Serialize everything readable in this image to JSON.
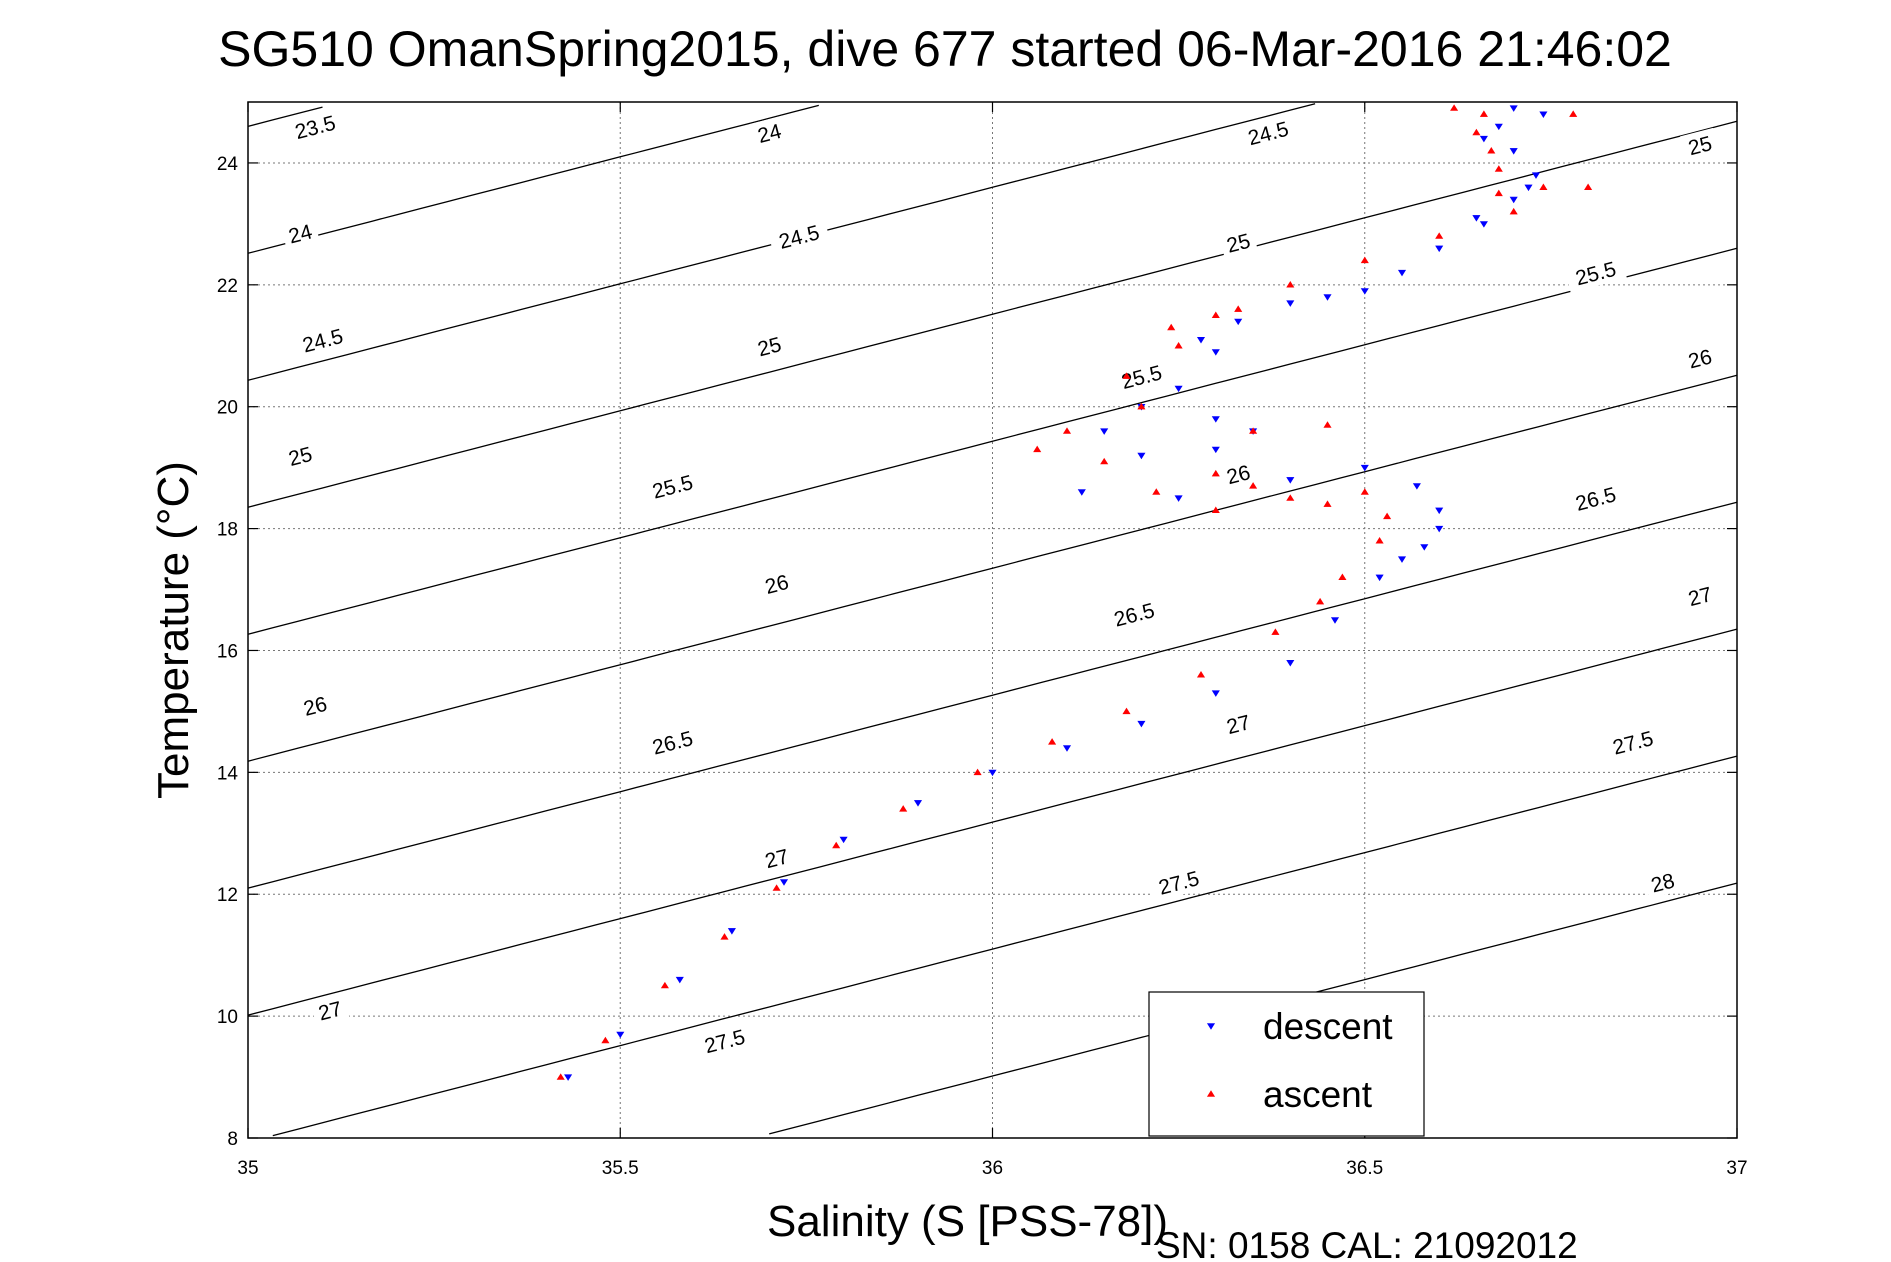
{
  "chart_data": {
    "type": "scatter",
    "title": "SG510 OmanSpring2015, dive 677 started 06-Mar-2016 21:46:02",
    "xlabel": "Salinity (S [PSS-78])",
    "ylabel": "Temperature (°C)",
    "xlim": [
      35,
      37
    ],
    "ylim": [
      8,
      25
    ],
    "x_ticks": [
      35,
      35.5,
      36,
      36.5,
      37
    ],
    "x_tick_labels": [
      "35",
      "35.5",
      "36",
      "36.5",
      "37"
    ],
    "y_ticks": [
      8,
      10,
      12,
      14,
      16,
      18,
      20,
      22,
      24
    ],
    "y_tick_labels": [
      "8",
      "10",
      "12",
      "14",
      "16",
      "18",
      "20",
      "22",
      "24"
    ],
    "grid": true,
    "legend_position": "bottom-right",
    "series": [
      {
        "name": "descent",
        "color": "#0000ff",
        "marker": "triangle-down",
        "points": [
          [
            35.43,
            9.0
          ],
          [
            35.5,
            9.7
          ],
          [
            35.58,
            10.6
          ],
          [
            35.65,
            11.4
          ],
          [
            35.72,
            12.2
          ],
          [
            35.8,
            12.9
          ],
          [
            35.9,
            13.5
          ],
          [
            36.0,
            14.0
          ],
          [
            36.1,
            14.4
          ],
          [
            36.2,
            14.8
          ],
          [
            36.3,
            15.3
          ],
          [
            36.4,
            15.8
          ],
          [
            36.46,
            16.5
          ],
          [
            36.52,
            17.2
          ],
          [
            36.58,
            17.7
          ],
          [
            36.6,
            18.3
          ],
          [
            36.57,
            18.7
          ],
          [
            36.5,
            19.0
          ],
          [
            36.3,
            19.8
          ],
          [
            36.2,
            20.0
          ],
          [
            36.15,
            19.6
          ],
          [
            36.12,
            18.6
          ],
          [
            36.2,
            19.2
          ],
          [
            36.25,
            20.3
          ],
          [
            36.3,
            20.9
          ],
          [
            36.33,
            21.4
          ],
          [
            36.4,
            21.7
          ],
          [
            36.5,
            21.9
          ],
          [
            36.55,
            22.2
          ],
          [
            36.6,
            22.6
          ],
          [
            36.66,
            23.0
          ],
          [
            36.7,
            23.4
          ],
          [
            36.73,
            23.8
          ],
          [
            36.7,
            24.2
          ],
          [
            36.68,
            24.6
          ],
          [
            36.7,
            24.9
          ],
          [
            36.74,
            24.8
          ],
          [
            36.25,
            18.5
          ],
          [
            36.4,
            18.8
          ],
          [
            36.3,
            19.3
          ],
          [
            36.35,
            19.6
          ],
          [
            36.28,
            21.1
          ],
          [
            36.45,
            21.8
          ],
          [
            36.65,
            23.1
          ],
          [
            36.72,
            23.6
          ],
          [
            36.66,
            24.4
          ],
          [
            36.6,
            18.0
          ],
          [
            36.55,
            17.5
          ]
        ]
      },
      {
        "name": "ascent",
        "color": "#ff0000",
        "marker": "triangle-up",
        "points": [
          [
            35.42,
            9.0
          ],
          [
            35.48,
            9.6
          ],
          [
            35.56,
            10.5
          ],
          [
            35.64,
            11.3
          ],
          [
            35.71,
            12.1
          ],
          [
            35.79,
            12.8
          ],
          [
            35.88,
            13.4
          ],
          [
            35.98,
            14.0
          ],
          [
            36.08,
            14.5
          ],
          [
            36.18,
            15.0
          ],
          [
            36.28,
            15.6
          ],
          [
            36.38,
            16.3
          ],
          [
            36.44,
            16.8
          ],
          [
            36.47,
            17.2
          ],
          [
            36.52,
            17.8
          ],
          [
            36.53,
            18.2
          ],
          [
            36.5,
            18.6
          ],
          [
            36.45,
            18.4
          ],
          [
            36.35,
            18.7
          ],
          [
            36.3,
            18.3
          ],
          [
            36.22,
            18.6
          ],
          [
            36.15,
            19.1
          ],
          [
            36.06,
            19.3
          ],
          [
            36.1,
            19.6
          ],
          [
            36.2,
            20.0
          ],
          [
            36.18,
            20.5
          ],
          [
            36.25,
            21.0
          ],
          [
            36.3,
            21.5
          ],
          [
            36.4,
            22.0
          ],
          [
            36.5,
            22.4
          ],
          [
            36.6,
            22.8
          ],
          [
            36.7,
            23.2
          ],
          [
            36.8,
            23.6
          ],
          [
            36.74,
            23.6
          ],
          [
            36.68,
            23.9
          ],
          [
            36.67,
            24.2
          ],
          [
            36.65,
            24.5
          ],
          [
            36.66,
            24.8
          ],
          [
            36.78,
            24.8
          ],
          [
            36.35,
            19.6
          ],
          [
            36.45,
            19.7
          ],
          [
            36.4,
            18.5
          ],
          [
            36.3,
            18.9
          ],
          [
            36.24,
            21.3
          ],
          [
            36.33,
            21.6
          ],
          [
            36.62,
            24.9
          ],
          [
            36.68,
            23.5
          ]
        ]
      }
    ],
    "isopycnals": {
      "levels": [
        23.5,
        24,
        24.5,
        25,
        25.5,
        26,
        26.5,
        27,
        27.5,
        28
      ],
      "labels": [
        {
          "text": "23.5",
          "s": 35.09,
          "t": 24.6
        },
        {
          "text": "24",
          "s": 35.07,
          "t": 22.85
        },
        {
          "text": "24.5",
          "s": 35.1,
          "t": 21.1
        },
        {
          "text": "25",
          "s": 35.07,
          "t": 19.2
        },
        {
          "text": "26",
          "s": 35.09,
          "t": 15.1
        },
        {
          "text": "27",
          "s": 35.11,
          "t": 10.1
        },
        {
          "text": "24",
          "s": 35.7,
          "t": 24.5
        },
        {
          "text": "24.5",
          "s": 35.74,
          "t": 22.8
        },
        {
          "text": "25",
          "s": 35.7,
          "t": 21.0
        },
        {
          "text": "25.5",
          "s": 35.57,
          "t": 18.7
        },
        {
          "text": "26",
          "s": 35.71,
          "t": 17.1
        },
        {
          "text": "26.5",
          "s": 35.57,
          "t": 14.5
        },
        {
          "text": "27",
          "s": 35.71,
          "t": 12.6
        },
        {
          "text": "27.5",
          "s": 35.64,
          "t": 9.6
        },
        {
          "text": "25.5",
          "s": 36.2,
          "t": 20.5
        },
        {
          "text": "26",
          "s": 36.33,
          "t": 18.9
        },
        {
          "text": "26.5",
          "s": 36.19,
          "t": 16.6
        },
        {
          "text": "27",
          "s": 36.33,
          "t": 14.8
        },
        {
          "text": "27.5",
          "s": 36.25,
          "t": 12.2
        },
        {
          "text": "24.5",
          "s": 36.37,
          "t": 24.5
        },
        {
          "text": "25",
          "s": 36.33,
          "t": 22.7
        },
        {
          "text": "25.5",
          "s": 36.81,
          "t": 22.2
        },
        {
          "text": "26",
          "s": 36.95,
          "t": 20.8
        },
        {
          "text": "26.5",
          "s": 36.81,
          "t": 18.5
        },
        {
          "text": "27",
          "s": 36.95,
          "t": 16.9
        },
        {
          "text": "27.5",
          "s": 36.86,
          "t": 14.5
        },
        {
          "text": "28",
          "s": 36.9,
          "t": 12.2
        },
        {
          "text": "25",
          "s": 36.95,
          "t": 24.3
        }
      ]
    },
    "footer_text": "SN: 0158  CAL: 21092012"
  }
}
